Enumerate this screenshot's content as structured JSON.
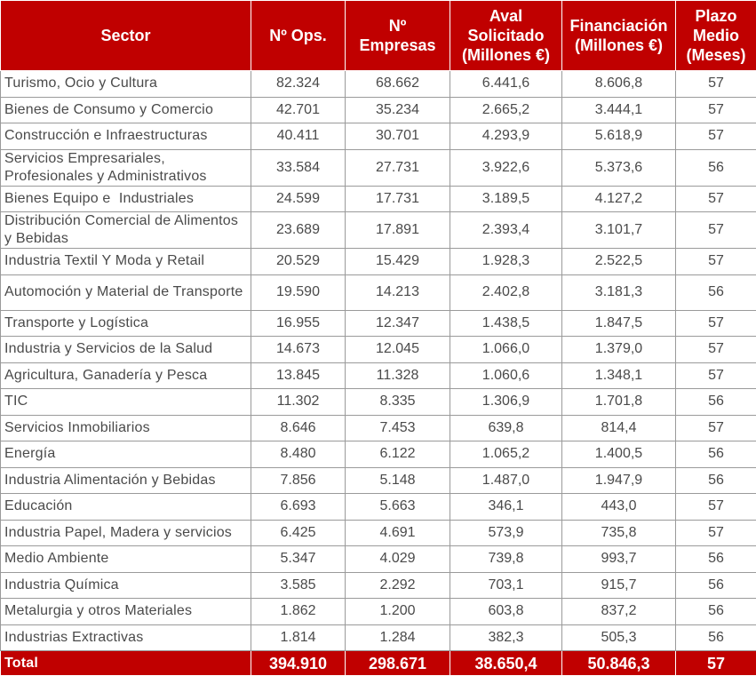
{
  "headers": {
    "sector": "Sector",
    "ops": "Nº Ops.",
    "empresas": "Nº Empresas",
    "aval": "Aval Solicitado (Millones €)",
    "financiacion": "Financiación (Millones €)",
    "plazo": "Plazo Medio (Meses)"
  },
  "rows": [
    {
      "sector": "Turismo, Ocio y Cultura",
      "ops": "82.324",
      "empresas": "68.662",
      "aval": "6.441,6",
      "financiacion": "8.606,8",
      "plazo": "57"
    },
    {
      "sector": "Bienes de Consumo y Comercio",
      "ops": "42.701",
      "empresas": "35.234",
      "aval": "2.665,2",
      "financiacion": "3.444,1",
      "plazo": "57"
    },
    {
      "sector": "Construcción e Infraestructuras",
      "ops": "40.411",
      "empresas": "30.701",
      "aval": "4.293,9",
      "financiacion": "5.618,9",
      "plazo": "57"
    },
    {
      "sector": "Servicios Empresariales, Profesionales y Administrativos",
      "ops": "33.584",
      "empresas": "27.731",
      "aval": "3.922,6",
      "financiacion": "5.373,6",
      "plazo": "56"
    },
    {
      "sector": "Bienes Equipo e  Industriales",
      "ops": "24.599",
      "empresas": "17.731",
      "aval": "3.189,5",
      "financiacion": "4.127,2",
      "plazo": "57"
    },
    {
      "sector": "Distribución Comercial de Alimentos y Bebidas",
      "ops": "23.689",
      "empresas": "17.891",
      "aval": "2.393,4",
      "financiacion": "3.101,7",
      "plazo": "57"
    },
    {
      "sector": "Industria Textil Y Moda y Retail",
      "ops": "20.529",
      "empresas": "15.429",
      "aval": "1.928,3",
      "financiacion": "2.522,5",
      "plazo": "57"
    },
    {
      "sector": "Automoción y Material de Transporte",
      "ops": "19.590",
      "empresas": "14.213",
      "aval": "2.402,8",
      "financiacion": "3.181,3",
      "plazo": "56"
    },
    {
      "sector": "Transporte y Logística",
      "ops": "16.955",
      "empresas": "12.347",
      "aval": "1.438,5",
      "financiacion": "1.847,5",
      "plazo": "57"
    },
    {
      "sector": "Industria y Servicios de la Salud",
      "ops": "14.673",
      "empresas": "12.045",
      "aval": "1.066,0",
      "financiacion": "1.379,0",
      "plazo": "57"
    },
    {
      "sector": "Agricultura, Ganadería y Pesca",
      "ops": "13.845",
      "empresas": "11.328",
      "aval": "1.060,6",
      "financiacion": "1.348,1",
      "plazo": "57"
    },
    {
      "sector": "TIC",
      "ops": "11.302",
      "empresas": "8.335",
      "aval": "1.306,9",
      "financiacion": "1.701,8",
      "plazo": "56"
    },
    {
      "sector": "Servicios Inmobiliarios",
      "ops": "8.646",
      "empresas": "7.453",
      "aval": "639,8",
      "financiacion": "814,4",
      "plazo": "57"
    },
    {
      "sector": "Energía",
      "ops": "8.480",
      "empresas": "6.122",
      "aval": "1.065,2",
      "financiacion": "1.400,5",
      "plazo": "56"
    },
    {
      "sector": "Industria Alimentación y Bebidas",
      "ops": "7.856",
      "empresas": "5.148",
      "aval": "1.487,0",
      "financiacion": "1.947,9",
      "plazo": "56"
    },
    {
      "sector": "Educación",
      "ops": "6.693",
      "empresas": "5.663",
      "aval": "346,1",
      "financiacion": "443,0",
      "plazo": "57"
    },
    {
      "sector": "Industria Papel, Madera y servicios",
      "ops": "6.425",
      "empresas": "4.691",
      "aval": "573,9",
      "financiacion": "735,8",
      "plazo": "57"
    },
    {
      "sector": "Medio Ambiente",
      "ops": "5.347",
      "empresas": "4.029",
      "aval": "739,8",
      "financiacion": "993,7",
      "plazo": "56"
    },
    {
      "sector": "Industria Química",
      "ops": "3.585",
      "empresas": "2.292",
      "aval": "703,1",
      "financiacion": "915,7",
      "plazo": "56"
    },
    {
      "sector": "Metalurgia y otros Materiales",
      "ops": "1.862",
      "empresas": "1.200",
      "aval": "603,8",
      "financiacion": "837,2",
      "plazo": "56"
    },
    {
      "sector": "Industrias Extractivas",
      "ops": "1.814",
      "empresas": "1.284",
      "aval": "382,3",
      "financiacion": "505,3",
      "plazo": "56"
    }
  ],
  "total": {
    "sector": "Total",
    "ops": "394.910",
    "empresas": "298.671",
    "aval": "38.650,4",
    "financiacion": "50.846,3",
    "plazo": "57"
  },
  "colors": {
    "header_bg": "#c00000",
    "header_text": "#ffffff",
    "cell_text": "#4a4a4a",
    "border": "#9a9a9a"
  }
}
